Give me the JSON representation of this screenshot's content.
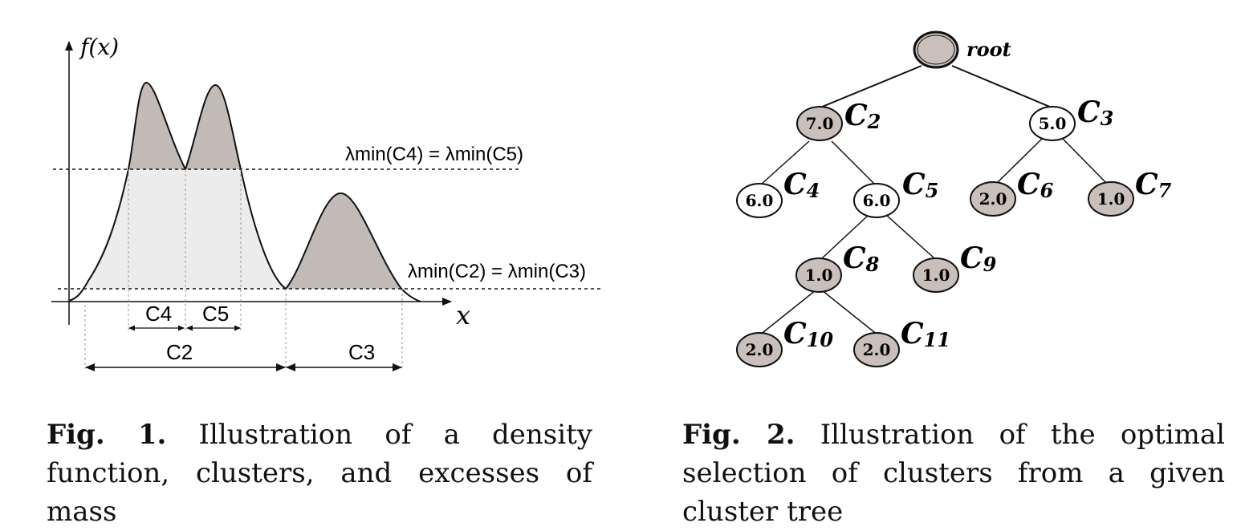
{
  "fig1": {
    "y_axis_label": "f(x)",
    "x_axis_label": "x",
    "level_high_label": "λmin(C4) = λmin(C5)",
    "level_low_label": "λmin(C2) = λmin(C3)",
    "interval_labels": {
      "c4": "C4",
      "c5": "C5",
      "c2": "C2",
      "c3": "C3"
    },
    "caption_fig": "Fig. 1.",
    "caption_text": " Illustration of a density function, clusters, and excesses of mass"
  },
  "fig2": {
    "root_label": "root",
    "nodes": [
      {
        "id": "c2",
        "value": "7.0",
        "label": "C",
        "sub": "2",
        "shaded": true
      },
      {
        "id": "c3",
        "value": "5.0",
        "label": "C",
        "sub": "3",
        "shaded": false
      },
      {
        "id": "c4",
        "value": "6.0",
        "label": "C",
        "sub": "4",
        "shaded": false
      },
      {
        "id": "c5",
        "value": "6.0",
        "label": "C",
        "sub": "5",
        "shaded": false
      },
      {
        "id": "c6",
        "value": "2.0",
        "label": "C",
        "sub": "6",
        "shaded": true
      },
      {
        "id": "c7",
        "value": "1.0",
        "label": "C",
        "sub": "7",
        "shaded": true
      },
      {
        "id": "c8",
        "value": "1.0",
        "label": "C",
        "sub": "8",
        "shaded": true
      },
      {
        "id": "c9",
        "value": "1.0",
        "label": "C",
        "sub": "9",
        "shaded": true
      },
      {
        "id": "c10",
        "value": "2.0",
        "label": "C",
        "sub": "10",
        "shaded": true
      },
      {
        "id": "c11",
        "value": "2.0",
        "label": "C",
        "sub": "11",
        "shaded": true
      }
    ],
    "caption_fig": "Fig. 2.",
    "caption_text": " Illustration of the optimal selection of clusters from a given cluster tree"
  },
  "colors": {
    "node_shaded": "#c9c0bb",
    "excess_mass": "#c2bab6",
    "cluster_area": "#ececec"
  }
}
